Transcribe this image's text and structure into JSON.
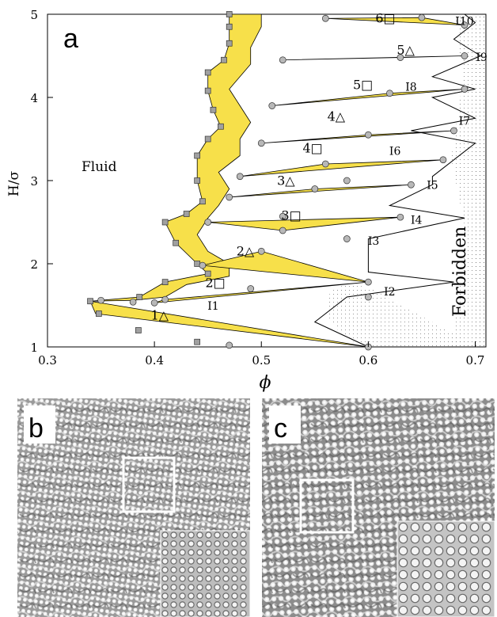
{
  "chart_data": {
    "type": "scatter",
    "xlabel": "ϕ",
    "ylabel": "H/σ",
    "xlim": [
      0.3,
      0.71
    ],
    "ylim": [
      1,
      5
    ],
    "xticks": [
      "0.3",
      "0.4",
      "0.5",
      "0.6",
      "0.7"
    ],
    "yticks": [
      "1",
      "2",
      "3",
      "4",
      "5"
    ],
    "grid": false,
    "panel_labels": {
      "a": "a",
      "b": "b",
      "c": "c"
    },
    "region_labels": {
      "fluid": "Fluid",
      "forbidden": "Forbidden"
    },
    "phase_labels": [
      {
        "text": "1△",
        "x": 0.405,
        "y": 1.33
      },
      {
        "text": "2□",
        "x": 0.457,
        "y": 1.72
      },
      {
        "text": "2△",
        "x": 0.485,
        "y": 2.1
      },
      {
        "text": "3□",
        "x": 0.528,
        "y": 2.53
      },
      {
        "text": "3△",
        "x": 0.523,
        "y": 2.95
      },
      {
        "text": "4□",
        "x": 0.548,
        "y": 3.34
      },
      {
        "text": "4△",
        "x": 0.57,
        "y": 3.72
      },
      {
        "text": "5□",
        "x": 0.595,
        "y": 4.1
      },
      {
        "text": "5△",
        "x": 0.635,
        "y": 4.52
      },
      {
        "text": "6□",
        "x": 0.616,
        "y": 4.9
      }
    ],
    "intermediate_labels": [
      {
        "text": "I1",
        "x": 0.455,
        "y": 1.45
      },
      {
        "text": "I2",
        "x": 0.62,
        "y": 1.62
      },
      {
        "text": "I3",
        "x": 0.605,
        "y": 2.23
      },
      {
        "text": "I4",
        "x": 0.645,
        "y": 2.48
      },
      {
        "text": "I5",
        "x": 0.66,
        "y": 2.9
      },
      {
        "text": "I6",
        "x": 0.625,
        "y": 3.31
      },
      {
        "text": "I7",
        "x": 0.69,
        "y": 3.67
      },
      {
        "text": "I8",
        "x": 0.64,
        "y": 4.08
      },
      {
        "text": "I9",
        "x": 0.706,
        "y": 4.44
      },
      {
        "text": "I10",
        "x": 0.69,
        "y": 4.87
      }
    ],
    "series": [
      {
        "marker": "square",
        "points": [
          [
            0.34,
            1.55
          ],
          [
            0.386,
            1.6
          ],
          [
            0.41,
            1.78
          ],
          [
            0.45,
            1.88
          ],
          [
            0.44,
            2.0
          ],
          [
            0.42,
            2.25
          ],
          [
            0.41,
            2.5
          ],
          [
            0.43,
            2.6
          ],
          [
            0.445,
            2.75
          ],
          [
            0.44,
            3.0
          ],
          [
            0.44,
            3.3
          ],
          [
            0.45,
            3.5
          ],
          [
            0.462,
            3.65
          ],
          [
            0.455,
            3.85
          ],
          [
            0.45,
            4.08
          ],
          [
            0.45,
            4.3
          ],
          [
            0.465,
            4.45
          ],
          [
            0.47,
            4.65
          ],
          [
            0.47,
            4.85
          ],
          [
            0.47,
            5.0
          ],
          [
            0.348,
            1.4
          ],
          [
            0.385,
            1.2
          ],
          [
            0.44,
            1.06
          ]
        ]
      },
      {
        "marker": "circle",
        "points": [
          [
            0.35,
            1.56
          ],
          [
            0.38,
            1.54
          ],
          [
            0.4,
            1.53
          ],
          [
            0.41,
            1.57
          ],
          [
            0.49,
            1.7
          ],
          [
            0.6,
            1.78
          ],
          [
            0.445,
            1.98
          ],
          [
            0.5,
            2.15
          ],
          [
            0.58,
            2.3
          ],
          [
            0.45,
            2.5
          ],
          [
            0.52,
            2.4
          ],
          [
            0.63,
            2.56
          ],
          [
            0.47,
            2.8
          ],
          [
            0.55,
            2.9
          ],
          [
            0.64,
            2.95
          ],
          [
            0.48,
            3.05
          ],
          [
            0.56,
            3.2
          ],
          [
            0.67,
            3.25
          ],
          [
            0.5,
            3.45
          ],
          [
            0.6,
            3.55
          ],
          [
            0.68,
            3.6
          ],
          [
            0.51,
            3.9
          ],
          [
            0.62,
            4.05
          ],
          [
            0.69,
            4.1
          ],
          [
            0.52,
            4.45
          ],
          [
            0.63,
            4.48
          ],
          [
            0.69,
            4.5
          ],
          [
            0.56,
            4.95
          ],
          [
            0.65,
            4.96
          ],
          [
            0.69,
            4.87
          ],
          [
            0.6,
            1.0
          ],
          [
            0.47,
            1.02
          ],
          [
            0.6,
            1.6
          ],
          [
            0.52,
            2.57
          ],
          [
            0.58,
            3.0
          ]
        ]
      }
    ],
    "insets": [
      {
        "label": "b"
      },
      {
        "label": "c"
      }
    ]
  }
}
